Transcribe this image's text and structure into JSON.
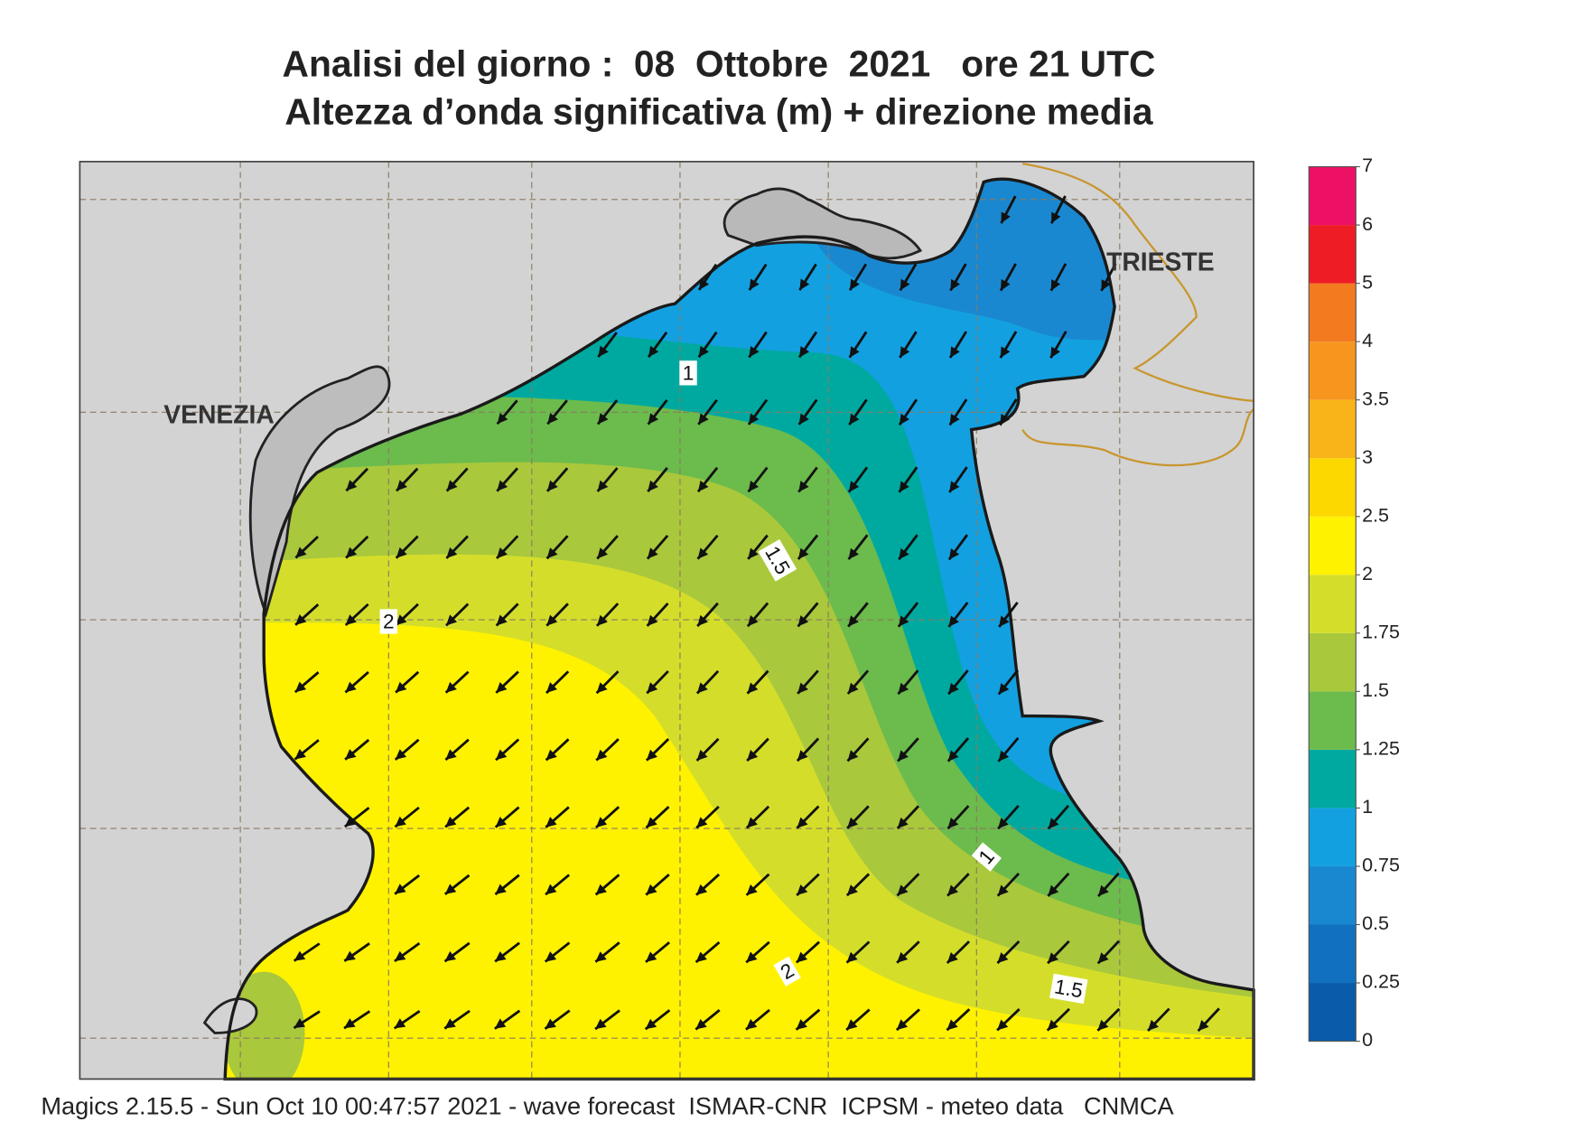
{
  "header": {
    "title": "Analisi del giorno :  08  Ottobre  2021   ore 21 UTC",
    "subtitle": "Altezza d’onda significativa (m) + direzione media"
  },
  "map": {
    "places": [
      "VENEZIA",
      "TRIESTE"
    ],
    "contour_labels": [
      1,
      1.5,
      2,
      1,
      2,
      1.5
    ]
  },
  "colorbar": {
    "levels": [
      0,
      0.25,
      0.5,
      0.75,
      1,
      1.25,
      1.5,
      1.75,
      2,
      2.5,
      3,
      3.5,
      4,
      5,
      6,
      7
    ],
    "colors": [
      "#0a5cab",
      "#1170bf",
      "#1a88d0",
      "#13a0e0",
      "#00a9a0",
      "#6cbb4d",
      "#a9c83c",
      "#d4de2a",
      "#fff200",
      "#fcd700",
      "#f9b41a",
      "#f7961e",
      "#f47a20",
      "#ee1c25",
      "#ec1164"
    ]
  },
  "footer": "Magics 2.15.5 - Sun Oct 10 00:47:57 2021 - wave forecast  ISMAR-CNR  ICPSM - meteo data   CNMCA"
}
